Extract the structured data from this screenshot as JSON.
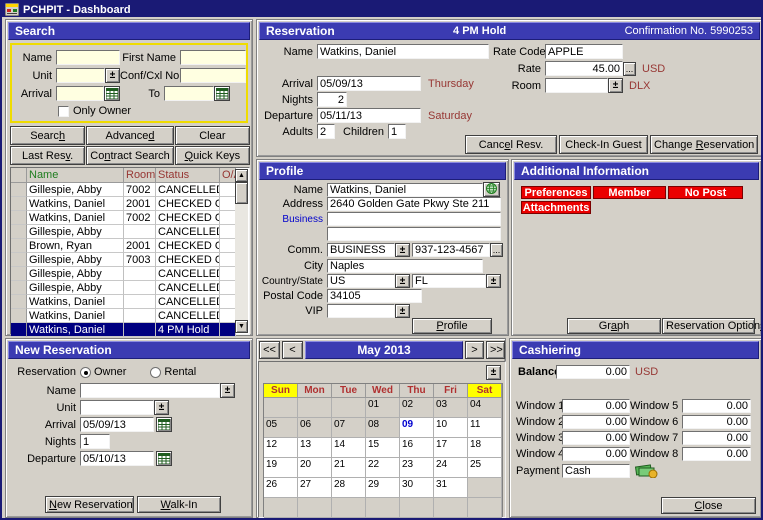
{
  "window": {
    "title": "PCHPIT - Dashboard"
  },
  "colors": {
    "titlebar": "#1A1A75",
    "panel_header": "#3B3BB2",
    "badge_red": "#EB0000",
    "selected_row": "#000080",
    "maroon": "#973734",
    "name_header_green": "#1f7d1f",
    "search_field_yellow": "#FFFFE1",
    "today_blue": "#0000D0",
    "weekend_yellow": "#FFFF00"
  },
  "icons": {
    "dropdown_glyph": "±",
    "ellipsis_glyph": "...",
    "scroll_up_glyph": "▲",
    "scroll_down_glyph": "▼"
  },
  "search": {
    "title": "Search",
    "labels": {
      "name": "Name",
      "first_name": "First Name",
      "unit": "Unit",
      "conf_cxl": "Conf/Cxl No.",
      "arrival": "Arrival",
      "to": "To",
      "only_owner": "Only Owner"
    },
    "buttons": {
      "search": {
        "label": "Search",
        "u": 5
      },
      "advanced": {
        "label": "Advanced",
        "u": 7
      },
      "clear": {
        "label": "Clear",
        "u": -1
      },
      "last_resv": {
        "label": "Last Resv.",
        "u": 8
      },
      "contract_search": {
        "label": "Contract Search",
        "u": 2
      },
      "quick_keys": {
        "label": "Quick Keys",
        "u": 0
      }
    },
    "results": {
      "columns": [
        "Name",
        "Room",
        "Status",
        "O/A"
      ],
      "rows": [
        {
          "name": "Gillespie, Abby",
          "room": "7002",
          "status": "CANCELLED",
          "oa": "",
          "selected": false
        },
        {
          "name": "Watkins, Daniel",
          "room": "2001",
          "status": "CHECKED OUT",
          "oa": "",
          "selected": false
        },
        {
          "name": "Watkins, Daniel",
          "room": "7002",
          "status": "CHECKED OUT",
          "oa": "",
          "selected": false
        },
        {
          "name": "Gillespie, Abby",
          "room": "",
          "status": "CANCELLED",
          "oa": "",
          "selected": false
        },
        {
          "name": "Brown, Ryan",
          "room": "2001",
          "status": "CHECKED OUT",
          "oa": "",
          "selected": false
        },
        {
          "name": "Gillespie, Abby",
          "room": "7003",
          "status": "CHECKED OUT",
          "oa": "",
          "selected": false
        },
        {
          "name": "Gillespie, Abby",
          "room": "",
          "status": "CANCELLED",
          "oa": "",
          "selected": false
        },
        {
          "name": "Gillespie, Abby",
          "room": "",
          "status": "CANCELLED",
          "oa": "",
          "selected": false
        },
        {
          "name": "Watkins, Daniel",
          "room": "",
          "status": "CANCELLED",
          "oa": "",
          "selected": false
        },
        {
          "name": "Watkins, Daniel",
          "room": "",
          "status": "CANCELLED",
          "oa": "",
          "selected": false
        },
        {
          "name": "Watkins, Daniel",
          "room": "",
          "status": "4 PM Hold",
          "oa": "",
          "selected": true
        }
      ]
    }
  },
  "reservation": {
    "title": "Reservation",
    "hold_status": "4 PM Hold",
    "confirmation": "Confirmation No. 5990253",
    "labels": {
      "name": "Name",
      "rate_code": "Rate Code",
      "rate": "Rate",
      "arrival": "Arrival",
      "room": "Room",
      "nights": "Nights",
      "departure": "Departure",
      "adults": "Adults",
      "children": "Children"
    },
    "values": {
      "name": "Watkins, Daniel",
      "rate_code": "APPLE",
      "rate": "45.00",
      "rate_currency": "USD",
      "arrival": "05/09/13",
      "arrival_day": "Thursday",
      "room": "",
      "room_type": "DLX",
      "nights": "2",
      "departure": "05/11/13",
      "departure_day": "Saturday",
      "adults": "2",
      "children": "1"
    },
    "buttons": {
      "cancel": {
        "label": "Cancel Resv.",
        "u": 4
      },
      "checkin": {
        "label": "Check-In Guest",
        "u": -1
      },
      "change": {
        "label": "Change Reservation",
        "u": 7
      }
    }
  },
  "profile": {
    "title": "Profile",
    "labels": {
      "name": "Name",
      "address": "Address",
      "business": "Business",
      "comm": "Comm.",
      "city": "City",
      "country_state": "Country/State",
      "postal_code": "Postal Code",
      "vip": "VIP"
    },
    "values": {
      "name": "Watkins, Daniel",
      "address": "2640 Golden Gate Pkwy Ste 211",
      "business": "",
      "address2": "",
      "comm_type": "BUSINESS",
      "comm_number": "937-123-4567",
      "city": "Naples",
      "country": "US",
      "state": "FL",
      "postal_code": "34105",
      "vip": ""
    },
    "button": {
      "label": "Profile",
      "u": 0
    }
  },
  "additional_info": {
    "title": "Additional Information",
    "badges": [
      "Preferences",
      "Member",
      "No Post",
      "Attachments"
    ],
    "buttons": {
      "graph": {
        "label": "Graph",
        "u": 2
      },
      "reservation_options": {
        "label": "Reservation Options",
        "u": 18
      }
    }
  },
  "new_reservation": {
    "title": "New Reservation",
    "labels": {
      "reservation": "Reservation",
      "owner": "Owner",
      "rental": "Rental",
      "name": "Name",
      "unit": "Unit",
      "arrival": "Arrival",
      "nights": "Nights",
      "departure": "Departure"
    },
    "values": {
      "type": "owner",
      "name": "",
      "unit": "",
      "arrival": "05/09/13",
      "nights": "1",
      "departure": "05/10/13"
    },
    "buttons": {
      "new_reservation": {
        "label": "New Reservation",
        "u": 0
      },
      "walk_in": {
        "label": "Walk-In",
        "u": 0
      }
    }
  },
  "calendar": {
    "title": "May 2013",
    "nav": {
      "prev_year": "<<",
      "prev_month": "<",
      "next_month": ">",
      "next_year": ">>"
    },
    "day_headers": [
      "Sun",
      "Mon",
      "Tue",
      "Wed",
      "Thu",
      "Fri",
      "Sat"
    ],
    "weekend_cols": [
      0,
      6
    ],
    "today": "09",
    "weeks": [
      [
        "",
        "",
        "",
        "01",
        "02",
        "03",
        "04"
      ],
      [
        "05",
        "06",
        "07",
        "08",
        "09",
        "10",
        "11"
      ],
      [
        "12",
        "13",
        "14",
        "15",
        "16",
        "17",
        "18"
      ],
      [
        "19",
        "20",
        "21",
        "22",
        "23",
        "24",
        "25"
      ],
      [
        "26",
        "27",
        "28",
        "29",
        "30",
        "31",
        ""
      ],
      [
        "",
        "",
        "",
        "",
        "",
        "",
        ""
      ]
    ]
  },
  "cashiering": {
    "title": "Cashiering",
    "balance_label": "Balance",
    "balance_value": "0.00",
    "currency": "USD",
    "windows": [
      {
        "label": "Window 1",
        "value": "0.00"
      },
      {
        "label": "Window 2",
        "value": "0.00"
      },
      {
        "label": "Window 3",
        "value": "0.00"
      },
      {
        "label": "Window 4",
        "value": "0.00"
      },
      {
        "label": "Window 5",
        "value": "0.00"
      },
      {
        "label": "Window 6",
        "value": "0.00"
      },
      {
        "label": "Window 7",
        "value": "0.00"
      },
      {
        "label": "Window 8",
        "value": "0.00"
      }
    ],
    "payment_label": "Payment",
    "payment_value": "Cash",
    "close_button": {
      "label": "Close",
      "u": 0
    }
  }
}
